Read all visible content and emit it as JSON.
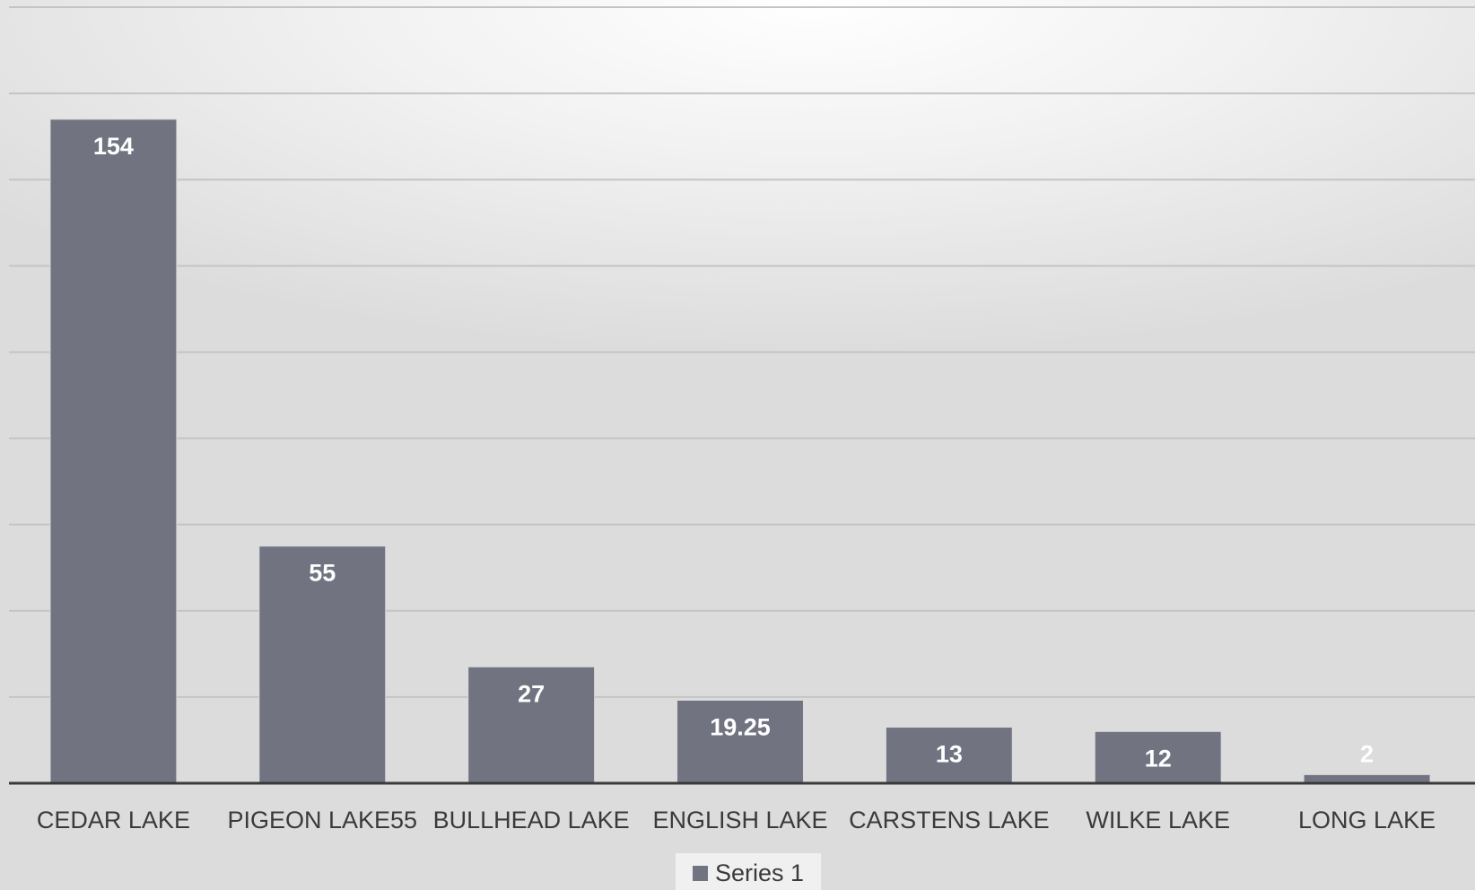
{
  "colors": {
    "bar": "#717480",
    "bar_edge": "#d7d8dc",
    "gridline": "#c4c4c4",
    "axis": "#3a3a3a",
    "data_label": "#ffffff",
    "tick_label": "#3a3a3a"
  },
  "chart_data": {
    "type": "bar",
    "title": "",
    "xlabel": "",
    "ylabel": "",
    "categories": [
      "CEDAR LAKE",
      "PIGEON LAKE55",
      "BULLHEAD LAKE",
      "ENGLISH LAKE",
      "CARSTENS LAKE",
      "WILKE LAKE",
      "LONG LAKE"
    ],
    "series": [
      {
        "name": "Series 1",
        "values": [
          154,
          55,
          27,
          19.25,
          13,
          12,
          2
        ]
      }
    ],
    "data_labels": [
      "154",
      "55",
      "27",
      "19.25",
      "13",
      "12",
      "2"
    ],
    "ylim": [
      0,
      180
    ],
    "y_gridline_step": 20,
    "y_tick_labels_visible": false,
    "grid": true,
    "legend": {
      "position": "bottom",
      "entries": [
        "Series 1"
      ]
    }
  }
}
